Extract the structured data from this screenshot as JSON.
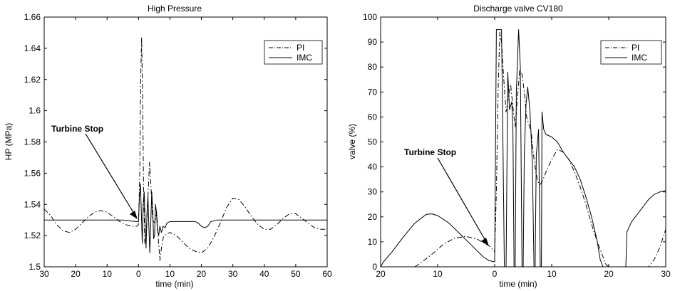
{
  "chart_data": [
    {
      "type": "line",
      "title": "High Pressure",
      "xlabel": "time (min)",
      "ylabel": "HP (MPa)",
      "xlim": [
        -30,
        60
      ],
      "ylim": [
        1.5,
        1.66
      ],
      "x_ticks": [
        -30,
        -20,
        -10,
        0,
        10,
        20,
        30,
        40,
        50,
        60
      ],
      "x_tick_labels": [
        "30",
        "20",
        "10",
        "0",
        "10",
        "20",
        "30",
        "40",
        "50",
        "60"
      ],
      "y_ticks": [
        1.5,
        1.52,
        1.54,
        1.56,
        1.58,
        1.6,
        1.62,
        1.64,
        1.66
      ],
      "y_tick_labels": [
        "1.5",
        "1.52",
        "1.54",
        "1.56",
        "1.58",
        "1.6",
        "1.62",
        "1.64",
        "1.66"
      ],
      "grid": false,
      "legend_position": "top-right",
      "annotation": {
        "text": "Turbine Stop",
        "x": 0,
        "y": 1.531
      },
      "series": [
        {
          "name": "PI",
          "style": "dash-dot",
          "points": [
            [
              -30,
              1.537
            ],
            [
              -28,
              1.533
            ],
            [
              -26,
              1.527
            ],
            [
              -24,
              1.523
            ],
            [
              -22,
              1.522
            ],
            [
              -20,
              1.524
            ],
            [
              -18,
              1.528
            ],
            [
              -16,
              1.532
            ],
            [
              -14,
              1.535
            ],
            [
              -12,
              1.536
            ],
            [
              -10,
              1.535
            ],
            [
              -8,
              1.532
            ],
            [
              -6,
              1.529
            ],
            [
              -4,
              1.527
            ],
            [
              -2,
              1.526
            ],
            [
              -0.5,
              1.526
            ],
            [
              0,
              1.527
            ],
            [
              0.4,
              1.56
            ],
            [
              0.7,
              1.62
            ],
            [
              1.0,
              1.647
            ],
            [
              1.3,
              1.61
            ],
            [
              1.6,
              1.55
            ],
            [
              2.0,
              1.515
            ],
            [
              2.5,
              1.522
            ],
            [
              3.0,
              1.545
            ],
            [
              3.5,
              1.567
            ],
            [
              4.0,
              1.55
            ],
            [
              4.5,
              1.53
            ],
            [
              5.2,
              1.528
            ],
            [
              5.8,
              1.535
            ],
            [
              6.3,
              1.518
            ],
            [
              6.8,
              1.504
            ],
            [
              7.3,
              1.512
            ],
            [
              8,
              1.52
            ],
            [
              10,
              1.522
            ],
            [
              12,
              1.52
            ],
            [
              14,
              1.516
            ],
            [
              16,
              1.512
            ],
            [
              18,
              1.51
            ],
            [
              20,
              1.509
            ],
            [
              22,
              1.512
            ],
            [
              24,
              1.519
            ],
            [
              26,
              1.528
            ],
            [
              28,
              1.538
            ],
            [
              30,
              1.544
            ],
            [
              32,
              1.543
            ],
            [
              34,
              1.538
            ],
            [
              36,
              1.532
            ],
            [
              38,
              1.527
            ],
            [
              40,
              1.524
            ],
            [
              42,
              1.524
            ],
            [
              44,
              1.527
            ],
            [
              46,
              1.531
            ],
            [
              48,
              1.534
            ],
            [
              50,
              1.534
            ],
            [
              52,
              1.531
            ],
            [
              54,
              1.528
            ],
            [
              56,
              1.525
            ],
            [
              58,
              1.524
            ],
            [
              60,
              1.524
            ]
          ]
        },
        {
          "name": "IMC",
          "style": "solid",
          "points": [
            [
              -30,
              1.53
            ],
            [
              -20,
              1.53
            ],
            [
              -10,
              1.53
            ],
            [
              -5,
              1.53
            ],
            [
              -1,
              1.529
            ],
            [
              0,
              1.529
            ],
            [
              0.3,
              1.545
            ],
            [
              0.6,
              1.553
            ],
            [
              0.9,
              1.535
            ],
            [
              1.2,
              1.515
            ],
            [
              1.5,
              1.54
            ],
            [
              1.8,
              1.548
            ],
            [
              2.1,
              1.528
            ],
            [
              2.4,
              1.512
            ],
            [
              2.7,
              1.535
            ],
            [
              3.0,
              1.545
            ],
            [
              3.3,
              1.525
            ],
            [
              3.6,
              1.509
            ],
            [
              3.9,
              1.528
            ],
            [
              4.2,
              1.548
            ],
            [
              4.5,
              1.537
            ],
            [
              4.8,
              1.518
            ],
            [
              5.1,
              1.52
            ],
            [
              5.4,
              1.54
            ],
            [
              5.7,
              1.535
            ],
            [
              6.0,
              1.524
            ],
            [
              6.4,
              1.52
            ],
            [
              6.8,
              1.526
            ],
            [
              7.3,
              1.522
            ],
            [
              7.8,
              1.526
            ],
            [
              8.5,
              1.525
            ],
            [
              9,
              1.528
            ],
            [
              10,
              1.529
            ],
            [
              12,
              1.529
            ],
            [
              14,
              1.529
            ],
            [
              16,
              1.529
            ],
            [
              18,
              1.529
            ],
            [
              19,
              1.528
            ],
            [
              20,
              1.526
            ],
            [
              21,
              1.525
            ],
            [
              22,
              1.526
            ],
            [
              23,
              1.529
            ],
            [
              25,
              1.53
            ],
            [
              30,
              1.53
            ],
            [
              40,
              1.53
            ],
            [
              50,
              1.53
            ],
            [
              60,
              1.53
            ]
          ]
        }
      ]
    },
    {
      "type": "line",
      "title": "Discharge valve CV180",
      "xlabel": "time (min)",
      "ylabel": "valve (%)",
      "xlim": [
        -20,
        30
      ],
      "ylim": [
        0,
        100
      ],
      "x_ticks": [
        -20,
        -10,
        0,
        10,
        20,
        30
      ],
      "x_tick_labels": [
        "20",
        "10",
        "0",
        "10",
        "20",
        "30"
      ],
      "y_ticks": [
        0,
        10,
        20,
        30,
        40,
        50,
        60,
        70,
        80,
        90,
        100
      ],
      "y_tick_labels": [
        "0",
        "10",
        "20",
        "30",
        "40",
        "50",
        "60",
        "70",
        "80",
        "90",
        "100"
      ],
      "grid": false,
      "legend_position": "top-right",
      "annotation": {
        "text": "Turbine Stop",
        "x": -0.5,
        "y": 8
      },
      "series": [
        {
          "name": "PI",
          "style": "dash-dot",
          "points": [
            [
              -14,
              0
            ],
            [
              -13,
              1.5
            ],
            [
              -11,
              5
            ],
            [
              -9,
              9
            ],
            [
              -7,
              11.5
            ],
            [
              -5,
              12.2
            ],
            [
              -3,
              11
            ],
            [
              -1,
              8.5
            ],
            [
              0,
              6
            ],
            [
              0.3,
              30
            ],
            [
              0.6,
              70
            ],
            [
              0.9,
              94
            ],
            [
              1.2,
              90
            ],
            [
              1.6,
              75
            ],
            [
              2.0,
              62
            ],
            [
              2.4,
              68
            ],
            [
              2.8,
              73
            ],
            [
              3.2,
              64
            ],
            [
              3.6,
              56
            ],
            [
              4.0,
              68
            ],
            [
              4.4,
              79
            ],
            [
              4.8,
              77
            ],
            [
              5.2,
              70
            ],
            [
              5.6,
              60
            ],
            [
              6.0,
              57
            ],
            [
              6.4,
              54
            ],
            [
              6.8,
              45
            ],
            [
              7.2,
              38
            ],
            [
              7.6,
              34
            ],
            [
              8.0,
              33
            ],
            [
              8.5,
              35
            ],
            [
              9,
              38
            ],
            [
              10,
              43
            ],
            [
              11,
              47
            ],
            [
              12,
              46
            ],
            [
              13,
              43
            ],
            [
              14,
              38
            ],
            [
              15,
              32
            ],
            [
              16,
              25
            ],
            [
              17,
              17
            ],
            [
              18,
              10
            ],
            [
              19,
              4
            ],
            [
              19.5,
              1
            ],
            [
              20,
              0
            ],
            [
              27,
              0
            ],
            [
              28,
              3
            ],
            [
              29,
              8
            ],
            [
              30,
              15
            ]
          ]
        },
        {
          "name": "IMC",
          "style": "solid",
          "points": [
            [
              -20,
              0
            ],
            [
              -19.5,
              2
            ],
            [
              -18,
              6
            ],
            [
              -16,
              12
            ],
            [
              -14,
              17.5
            ],
            [
              -12,
              21
            ],
            [
              -11,
              21.2
            ],
            [
              -10,
              20.5
            ],
            [
              -8,
              17.5
            ],
            [
              -6,
              13
            ],
            [
              -4,
              8.5
            ],
            [
              -2,
              4
            ],
            [
              -1,
              2.5
            ],
            [
              0,
              2
            ],
            [
              0.3,
              95
            ],
            [
              1.2,
              95
            ],
            [
              1.4,
              60
            ],
            [
              1.7,
              0
            ],
            [
              2.0,
              0
            ],
            [
              2.3,
              78
            ],
            [
              2.6,
              63
            ],
            [
              3.0,
              66
            ],
            [
              3.2,
              55
            ],
            [
              3.4,
              0
            ],
            [
              3.6,
              0
            ],
            [
              3.8,
              70
            ],
            [
              4.2,
              95
            ],
            [
              4.5,
              80
            ],
            [
              4.8,
              0
            ],
            [
              5.0,
              0
            ],
            [
              5.2,
              45
            ],
            [
              5.5,
              65
            ],
            [
              5.8,
              72
            ],
            [
              6.2,
              62
            ],
            [
              6.6,
              42
            ],
            [
              6.9,
              0
            ],
            [
              7.1,
              0
            ],
            [
              7.3,
              45
            ],
            [
              7.7,
              55
            ],
            [
              8.0,
              0
            ],
            [
              8.2,
              0
            ],
            [
              8.3,
              62
            ],
            [
              8.6,
              55
            ],
            [
              9,
              53
            ],
            [
              10,
              52
            ],
            [
              11,
              50
            ],
            [
              12,
              46
            ],
            [
              13,
              43
            ],
            [
              14,
              40
            ],
            [
              15,
              35
            ],
            [
              16,
              28
            ],
            [
              17,
              20
            ],
            [
              18,
              10
            ],
            [
              18.5,
              3
            ],
            [
              19,
              0
            ],
            [
              23,
              0
            ],
            [
              23.2,
              14
            ],
            [
              24,
              18
            ],
            [
              25,
              21
            ],
            [
              26,
              24
            ],
            [
              27,
              27
            ],
            [
              28,
              29
            ],
            [
              29,
              30
            ],
            [
              30,
              30.5
            ]
          ]
        }
      ]
    }
  ]
}
